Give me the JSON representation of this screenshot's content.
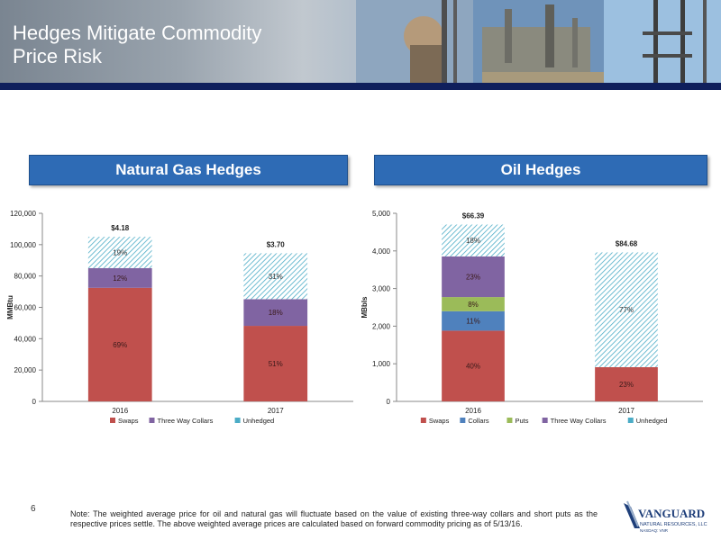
{
  "slide": {
    "title_line1": "Hedges Mitigate Commodity",
    "title_line2": "Price Risk",
    "page_number": "6",
    "note": "Note: The weighted average price for oil and natural gas will fluctuate based on the value of existing three-way collars and short puts as the respective prices settle. The above weighted average prices are calculated based on forward commodity pricing as of 5/13/16.",
    "logo": {
      "name": "VANGUARD",
      "sub": "NATURAL RESOURCES, LLC",
      "ticker": "NASDAQ: VNR"
    }
  },
  "headers": {
    "gas": "Natural Gas Hedges",
    "oil": "Oil Hedges"
  },
  "colors": {
    "swaps": "#c0504d",
    "collars": "#4f81bd",
    "puts": "#9bbb59",
    "three_way": "#8064a2",
    "unhedged": "#4bacc6",
    "header_bg": "#2e6bb5",
    "bar_navy": "#0f1f5c"
  },
  "chart_data": [
    {
      "type": "bar",
      "stacked": true,
      "title": "Natural Gas Hedges",
      "ylabel": "MMBtu",
      "ylim": [
        0,
        120000
      ],
      "yticks": [
        "0",
        "20,000",
        "40,000",
        "60,000",
        "80,000",
        "100,000",
        "120,000"
      ],
      "yticks_values": [
        0,
        20000,
        40000,
        60000,
        80000,
        100000,
        120000
      ],
      "categories": [
        "2016",
        "2017"
      ],
      "totals": [
        105000,
        94500
      ],
      "price_labels": [
        "$4.18",
        "$3.70"
      ],
      "grid": false,
      "legend": "bottom",
      "series": [
        {
          "name": "Swaps",
          "color": "#c0504d",
          "pattern": false,
          "values": [
            72450,
            48200
          ],
          "labels": [
            "69%",
            "51%"
          ]
        },
        {
          "name": "Three Way Collars",
          "color": "#8064a2",
          "pattern": false,
          "values": [
            12600,
            17000
          ],
          "labels": [
            "12%",
            "18%"
          ]
        },
        {
          "name": "Unhedged",
          "color": "#4bacc6",
          "pattern": true,
          "values": [
            19950,
            29300
          ],
          "labels": [
            "19%",
            "31%"
          ]
        }
      ]
    },
    {
      "type": "bar",
      "stacked": true,
      "title": "Oil Hedges",
      "ylabel": "MBbls",
      "ylim": [
        0,
        5000
      ],
      "yticks": [
        "0",
        "1,000",
        "2,000",
        "3,000",
        "4,000",
        "5,000"
      ],
      "yticks_values": [
        0,
        1000,
        2000,
        3000,
        4000,
        5000
      ],
      "categories": [
        "2016",
        "2017"
      ],
      "totals": [
        4700,
        3960
      ],
      "price_labels": [
        "$66.39",
        "$84.68"
      ],
      "grid": false,
      "legend": "bottom",
      "series": [
        {
          "name": "Swaps",
          "color": "#c0504d",
          "pattern": false,
          "values": [
            1880,
            910
          ],
          "labels": [
            "40%",
            "23%"
          ]
        },
        {
          "name": "Collars",
          "color": "#4f81bd",
          "pattern": false,
          "values": [
            517,
            0
          ],
          "labels": [
            "11%",
            ""
          ]
        },
        {
          "name": "Puts",
          "color": "#9bbb59",
          "pattern": false,
          "values": [
            376,
            0
          ],
          "labels": [
            "8%",
            ""
          ]
        },
        {
          "name": "Three Way Collars",
          "color": "#8064a2",
          "pattern": false,
          "values": [
            1081,
            0
          ],
          "labels": [
            "23%",
            ""
          ]
        },
        {
          "name": "Unhedged",
          "color": "#4bacc6",
          "pattern": true,
          "values": [
            846,
            3050
          ],
          "labels": [
            "18%",
            "77%"
          ]
        }
      ]
    }
  ]
}
